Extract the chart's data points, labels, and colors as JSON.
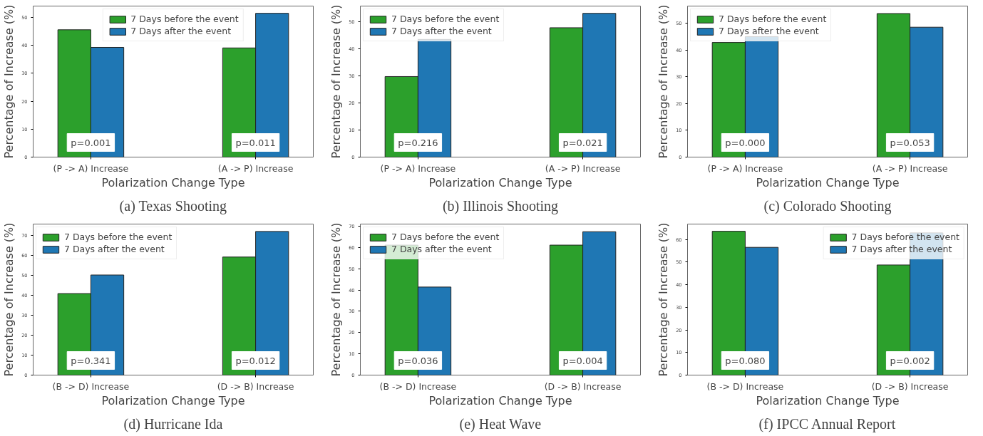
{
  "chart_data": [
    {
      "type": "bar",
      "title": "(a) Texas Shooting",
      "xlabel": "Polarization Change Type",
      "ylabel": "Percentage of Increase (%)",
      "categories": [
        "(P -> A) Increase",
        "(A -> P) Increase"
      ],
      "series": [
        {
          "name": "7 Days before the event",
          "color": "#2ca02c",
          "values": [
            45.6,
            39.1
          ]
        },
        {
          "name": "7 Days after the event",
          "color": "#1f77b4",
          "values": [
            39.3,
            51.5
          ]
        }
      ],
      "ylim": [
        0,
        54.1
      ],
      "yticks": [
        0,
        10,
        20,
        30,
        40,
        50
      ],
      "legend": "top",
      "grid": false,
      "annotations": [
        {
          "text": "p=0.001",
          "x": "(P -> A) Increase"
        },
        {
          "text": "p=0.011",
          "x": "(A -> P) Increase"
        }
      ]
    },
    {
      "type": "bar",
      "title": "(b) Illinois Shooting",
      "xlabel": "Polarization Change Type",
      "ylabel": "Percentage of Increase (%)",
      "categories": [
        "(P -> A) Increase",
        "(A -> P) Increase"
      ],
      "series": [
        {
          "name": "7 Days before the event",
          "color": "#2ca02c",
          "values": [
            29.7,
            47.7
          ]
        },
        {
          "name": "7 Days after the event",
          "color": "#1f77b4",
          "values": [
            43.4,
            53.0
          ]
        }
      ],
      "ylim": [
        0,
        55.7
      ],
      "yticks": [
        0,
        10,
        20,
        30,
        40,
        50
      ],
      "legend": "top left",
      "grid": false,
      "annotations": [
        {
          "text": "p=0.216",
          "x": "(P -> A) Increase"
        },
        {
          "text": "p=0.021",
          "x": "(A -> P) Increase"
        }
      ]
    },
    {
      "type": "bar",
      "title": "(c) Colorado Shooting",
      "xlabel": "Polarization Change Type",
      "ylabel": "Percentage of Increase (%)",
      "categories": [
        "(P -> A) Increase",
        "(A -> P) Increase"
      ],
      "series": [
        {
          "name": "7 Days before the event",
          "color": "#2ca02c",
          "values": [
            42.8,
            53.6
          ]
        },
        {
          "name": "7 Days after the event",
          "color": "#1f77b4",
          "values": [
            45.0,
            48.5
          ]
        }
      ],
      "ylim": [
        0,
        56.4
      ],
      "yticks": [
        0,
        10,
        20,
        30,
        40,
        50
      ],
      "legend": "top left",
      "grid": false,
      "annotations": [
        {
          "text": "p=0.000",
          "x": "(P -> A) Increase"
        },
        {
          "text": "p=0.053",
          "x": "(A -> P) Increase"
        }
      ]
    },
    {
      "type": "bar",
      "title": "(d) Hurricane Ida",
      "xlabel": "Polarization Change Type",
      "ylabel": "Percentage of Increase (%)",
      "categories": [
        "(B -> D) Increase",
        "(D -> B) Increase"
      ],
      "series": [
        {
          "name": "7 Days before the event",
          "color": "#2ca02c",
          "values": [
            40.8,
            59.1
          ]
        },
        {
          "name": "7 Days after the event",
          "color": "#1f77b4",
          "values": [
            50.1,
            71.9
          ]
        }
      ],
      "ylim": [
        0,
        75.6
      ],
      "yticks": [
        0,
        10,
        20,
        30,
        40,
        50,
        60,
        70
      ],
      "legend": "top left",
      "grid": false,
      "annotations": [
        {
          "text": "p=0.341",
          "x": "(B -> D) Increase"
        },
        {
          "text": "p=0.012",
          "x": "(D -> B) Increase"
        }
      ]
    },
    {
      "type": "bar",
      "title": "(e) Heat Wave",
      "xlabel": "Polarization Change Type",
      "ylabel": "Percentage of Increase (%)",
      "categories": [
        "(B -> D) Increase",
        "(D -> B) Increase"
      ],
      "series": [
        {
          "name": "7 Days before the event",
          "color": "#2ca02c",
          "values": [
            61.1,
            61.1
          ]
        },
        {
          "name": "7 Days after the event",
          "color": "#1f77b4",
          "values": [
            41.4,
            67.4
          ]
        }
      ],
      "ylim": [
        0,
        71
      ],
      "yticks": [
        0,
        10,
        20,
        30,
        40,
        50,
        60,
        70
      ],
      "legend": "top left",
      "grid": false,
      "annotations": [
        {
          "text": "p=0.036",
          "x": "(B -> D) Increase"
        },
        {
          "text": "p=0.004",
          "x": "(D -> B) Increase"
        }
      ]
    },
    {
      "type": "bar",
      "title": "(f) IPCC Annual Report",
      "xlabel": "Polarization Change Type",
      "ylabel": "Percentage of Increase (%)",
      "categories": [
        "(B -> D) Increase",
        "(D -> B) Increase"
      ],
      "series": [
        {
          "name": "7 Days before the event",
          "color": "#2ca02c",
          "values": [
            63.6,
            48.7
          ]
        },
        {
          "name": "7 Days after the event",
          "color": "#1f77b4",
          "values": [
            56.5,
            62.9
          ]
        }
      ],
      "ylim": [
        0,
        66.8
      ],
      "yticks": [
        0,
        10,
        20,
        30,
        40,
        50,
        60
      ],
      "legend": "top right",
      "grid": false,
      "annotations": [
        {
          "text": "p=0.080",
          "x": "(B -> D) Increase"
        },
        {
          "text": "p=0.002",
          "x": "(D -> B) Increase"
        }
      ]
    }
  ]
}
